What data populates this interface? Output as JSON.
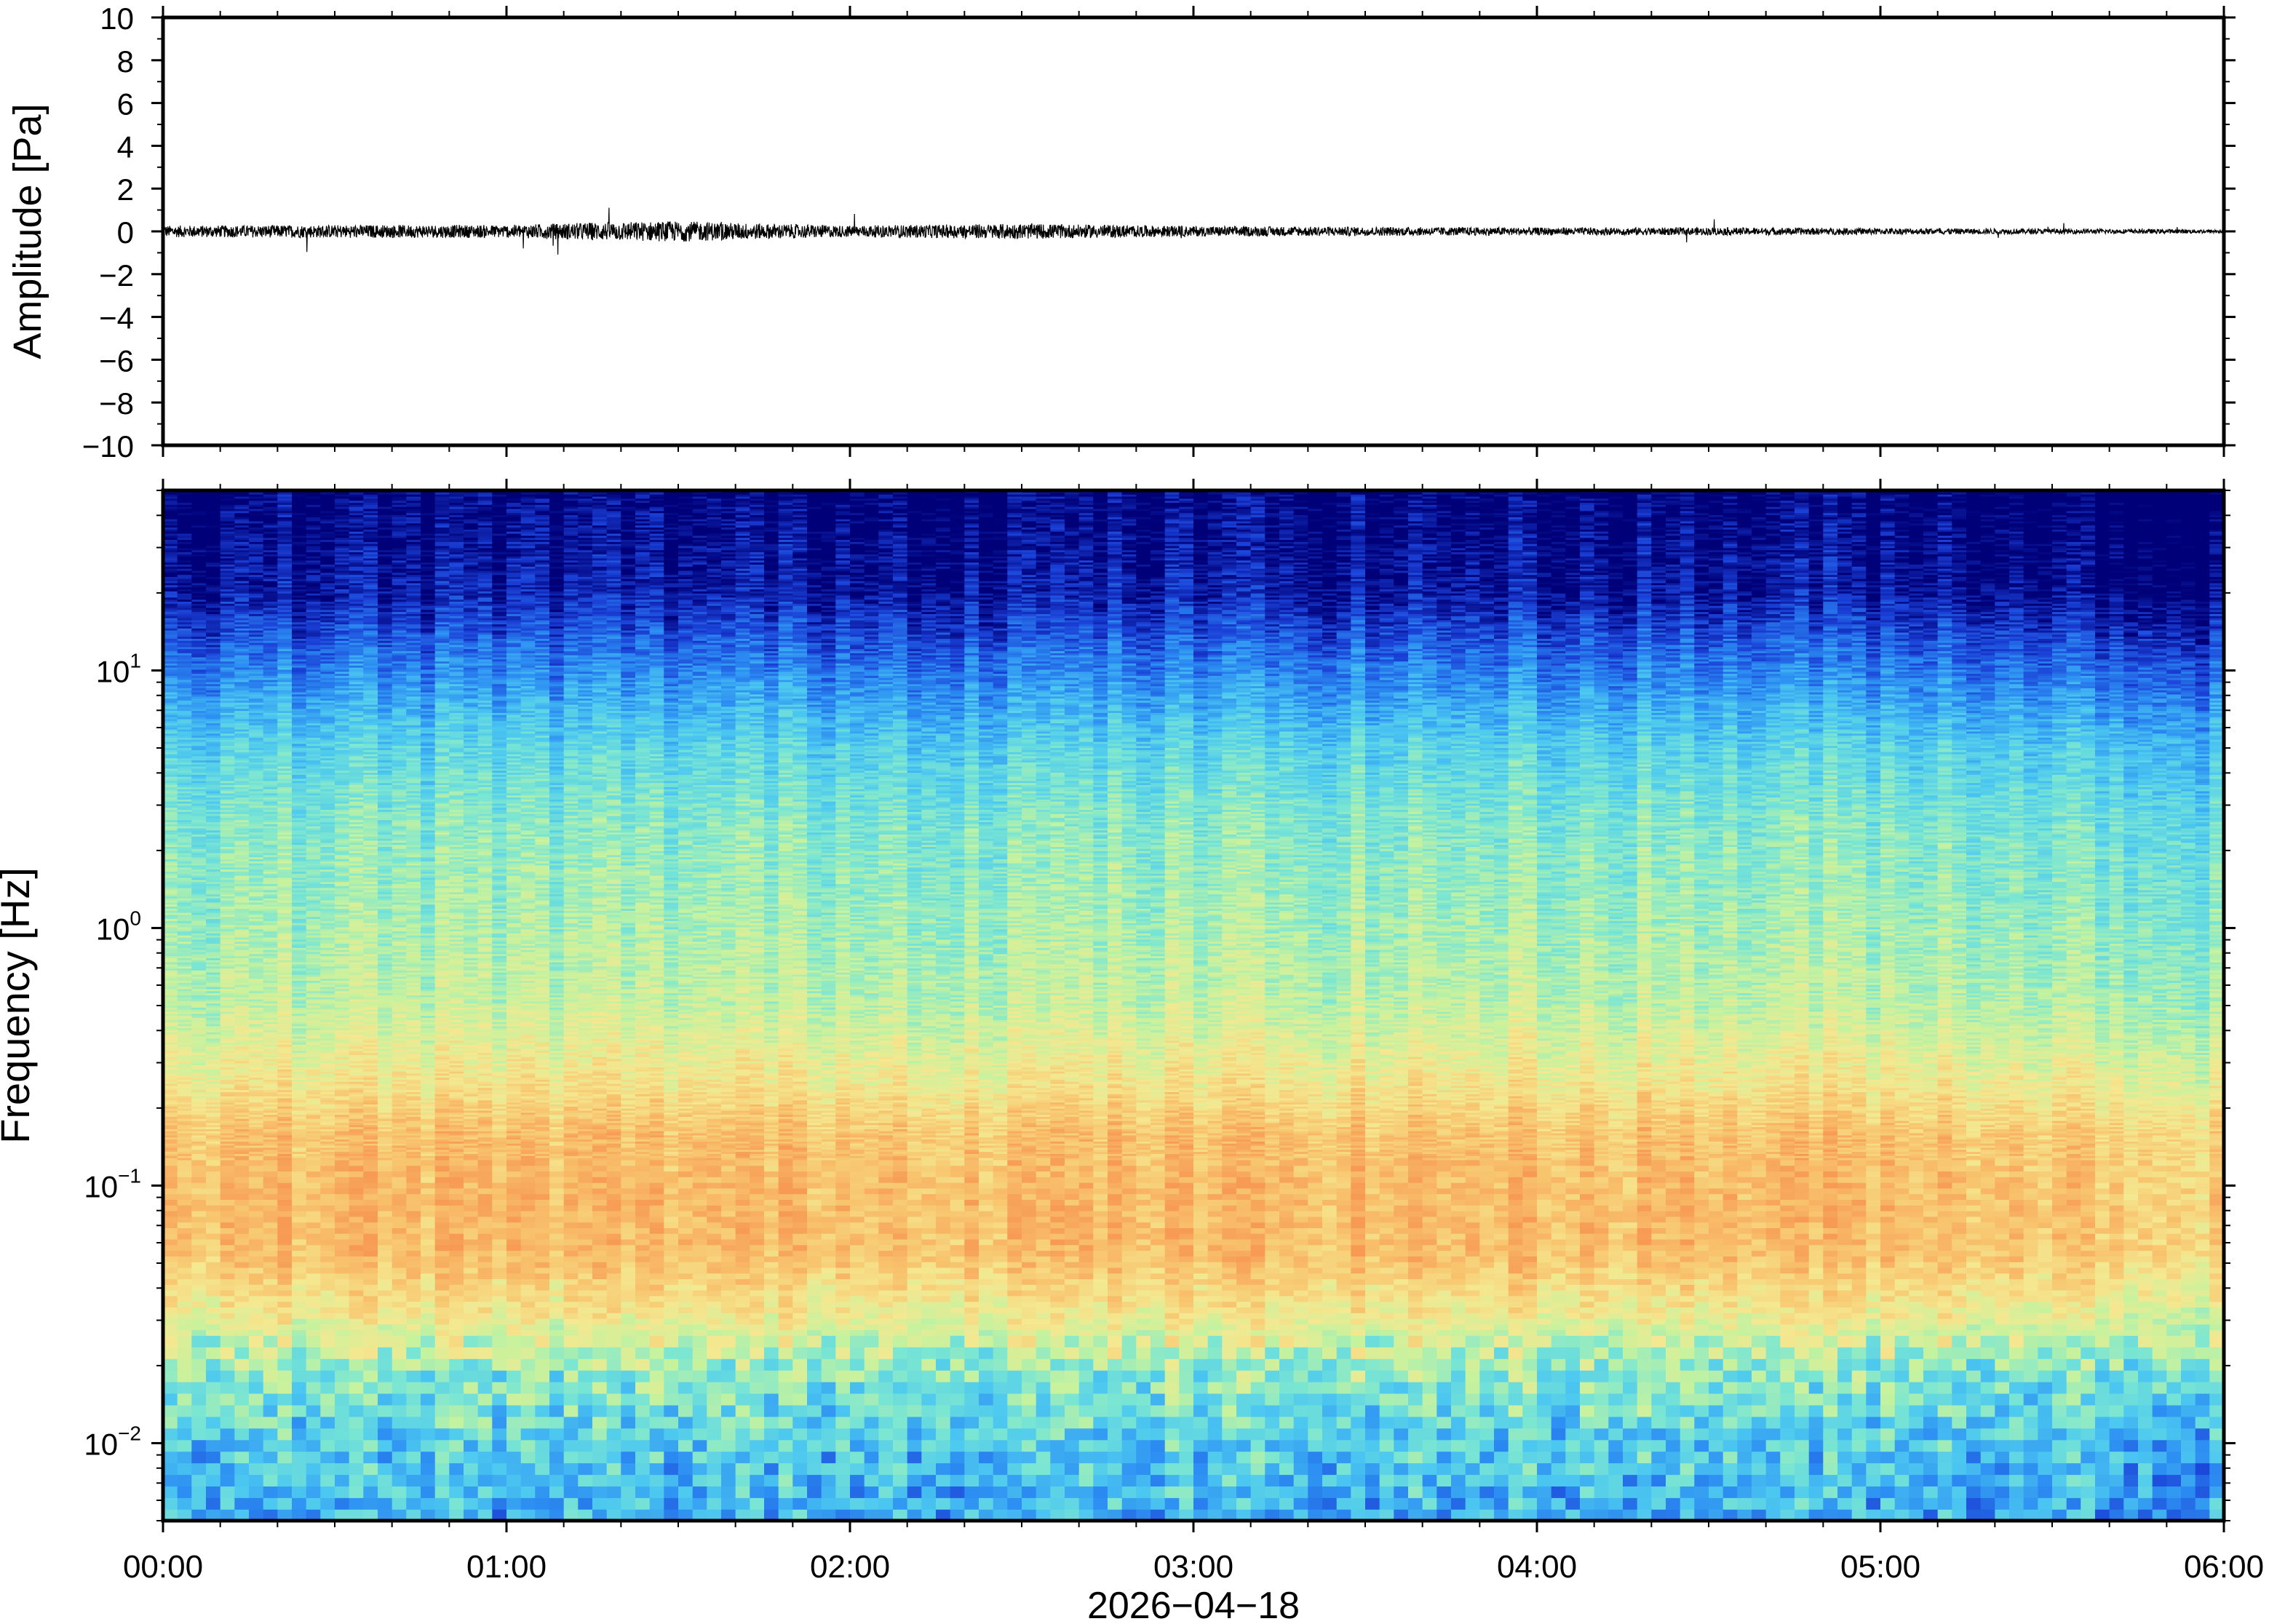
{
  "chart_data": [
    {
      "type": "line",
      "panel": "waveform",
      "ylabel": "Amplitude [Pa]",
      "ylim": [
        -10,
        10
      ],
      "yticks": [
        10,
        8,
        6,
        4,
        2,
        0,
        -2,
        -4,
        -6,
        -8,
        -10
      ],
      "ytick_labels": [
        "10",
        "8",
        "6",
        "4",
        "2",
        "0",
        "−2",
        "−4",
        "−6",
        "−8",
        "−10"
      ],
      "xlim_hours": [
        0,
        6
      ],
      "series": [
        {
          "x_hours": [
            0,
            0.5,
            1,
            1.25,
            1.5,
            1.75,
            2,
            2.5,
            3,
            3.5,
            4,
            4.5,
            5,
            5.5,
            6
          ],
          "envelope_pa": [
            0.45,
            0.5,
            0.5,
            0.7,
            0.8,
            0.6,
            0.45,
            0.6,
            0.4,
            0.35,
            0.3,
            0.3,
            0.25,
            0.2,
            0.15
          ],
          "color": "#000000"
        }
      ]
    },
    {
      "type": "heatmap",
      "panel": "spectrogram",
      "ylabel": "Frequency [Hz]",
      "xlabel": "2026−04−18",
      "yscale": "log",
      "ylim_hz": [
        0.005,
        50
      ],
      "ytick_labels": [
        {
          "base": "10",
          "exp": "1",
          "value": 10
        },
        {
          "base": "10",
          "exp": "0",
          "value": 1
        },
        {
          "base": "10",
          "exp": "−1",
          "value": 0.1
        },
        {
          "base": "10",
          "exp": "−2",
          "value": 0.01
        }
      ],
      "x_tick_labels": [
        "00:00",
        "01:00",
        "02:00",
        "03:00",
        "04:00",
        "05:00",
        "06:00"
      ],
      "colormap": [
        "#000078",
        "#1a3fd6",
        "#2c8df2",
        "#4cc8f0",
        "#7be6d2",
        "#c6f29e",
        "#f4e890",
        "#f8c46e",
        "#f79a54"
      ],
      "profile_colors": {
        "above_20hz": "#0a0a80",
        "10hz": "#2f6fe4",
        "3hz": "#6fd8d8",
        "1hz": "#c4ec9a",
        "0.3hz": "#f1e28e",
        "0.15hz": "#f6b26a",
        "0.08hz": "#f79a54",
        "0.03hz": "#c8f098",
        "below_0.01hz": "#46c4f0"
      }
    }
  ]
}
